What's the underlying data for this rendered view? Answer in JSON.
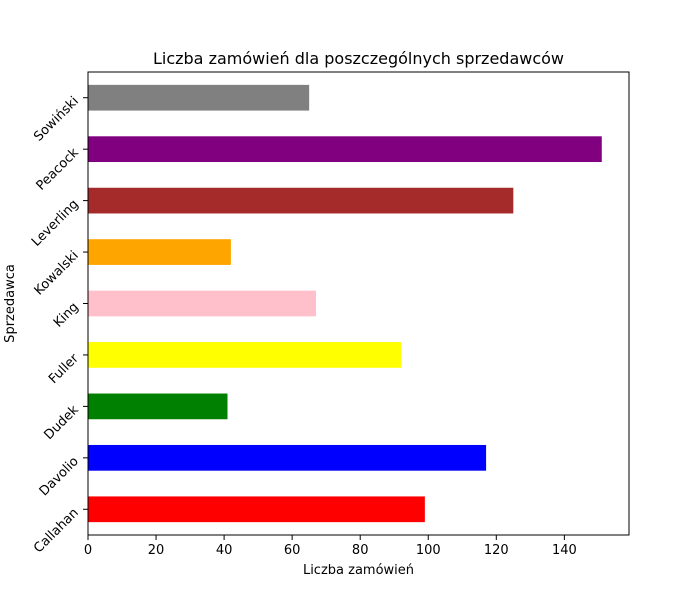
{
  "chart_data": {
    "type": "bar",
    "orientation": "horizontal",
    "title": "Liczba zamówień dla poszczególnych sprzedawców",
    "xlabel": "Liczba zamówień",
    "ylabel": "Sprzedawca",
    "xlim": [
      0,
      159
    ],
    "xticks": [
      0,
      20,
      40,
      60,
      80,
      100,
      120,
      140
    ],
    "grid": false,
    "categories": [
      "Callahan",
      "Davolio",
      "Dudek",
      "Fuller",
      "King",
      "Kowalski",
      "Leverling",
      "Peacock",
      "Sowiński"
    ],
    "values": [
      99,
      117,
      41,
      92,
      67,
      42,
      125,
      151,
      65
    ],
    "colors": [
      "#ff0000",
      "#0000ff",
      "#008000",
      "#ffff00",
      "#ffc0cb",
      "#ffa500",
      "#a52a2a",
      "#800080",
      "#808080"
    ]
  }
}
